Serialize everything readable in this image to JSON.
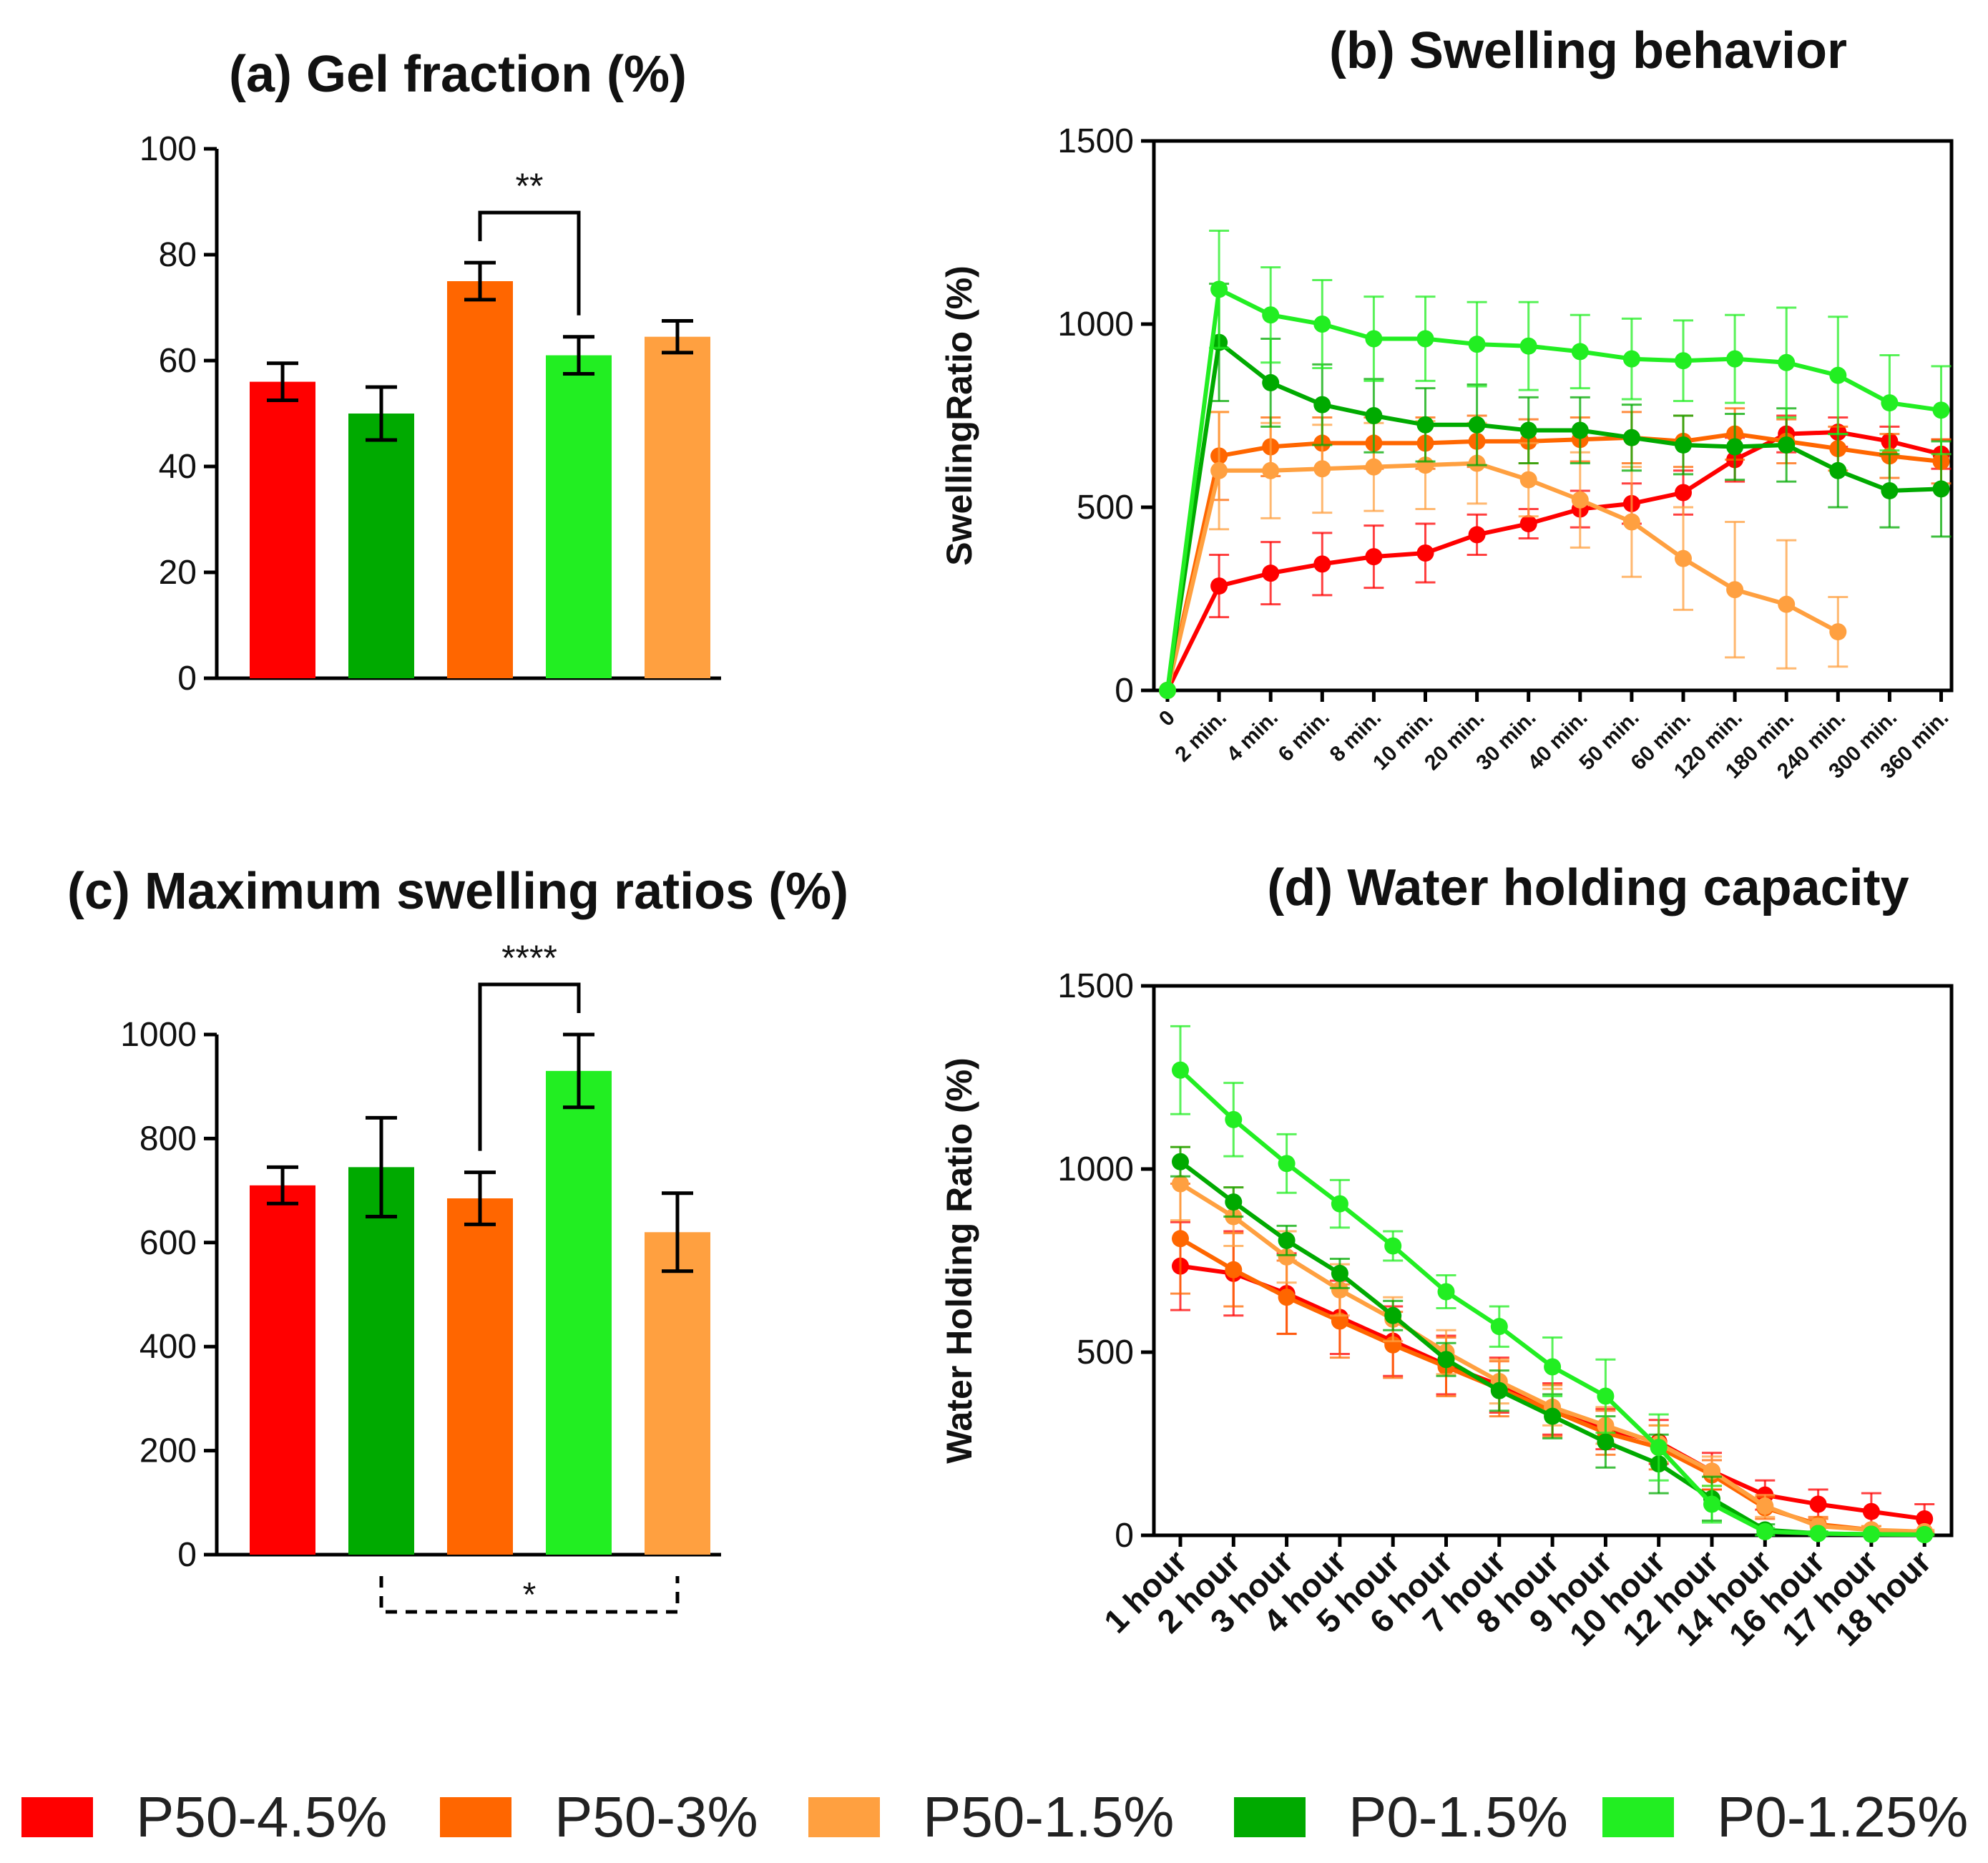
{
  "legend": [
    {
      "label": "P50-4.5%",
      "color": "#ff0000"
    },
    {
      "label": "P50-3%",
      "color": "#ff6600"
    },
    {
      "label": "P50-1.5%",
      "color": "#ffa040"
    },
    {
      "label": "P0-1.5%",
      "color": "#00aa00"
    },
    {
      "label": "P0-1.25%",
      "color": "#22ee22"
    }
  ],
  "chart_data": [
    {
      "id": "a",
      "type": "bar",
      "title": "(a)   Gel fraction (%)",
      "xlabel": "",
      "ylabel": "",
      "ylim": [
        0,
        100
      ],
      "yticks": [
        0,
        20,
        40,
        60,
        80,
        100
      ],
      "categories": [
        "P50-4.5%",
        "P0-1.5%",
        "P50-3%",
        "P0-1.25%",
        "P50-1.5%"
      ],
      "colors": [
        "#ff0000",
        "#00aa00",
        "#ff6600",
        "#22ee22",
        "#ffa040"
      ],
      "values": [
        56,
        50,
        75,
        61,
        64.5
      ],
      "errors": [
        3.5,
        5,
        3.5,
        3.5,
        3
      ],
      "annotations": [
        {
          "from": 2,
          "to": 3,
          "text": "**",
          "style": "solid"
        }
      ]
    },
    {
      "id": "b",
      "type": "line",
      "title": "(b)    Swelling behavior",
      "xlabel": "",
      "ylabel": "SwellingRatio (%)",
      "ylim": [
        0,
        1500
      ],
      "yticks": [
        0,
        500,
        1000,
        1500
      ],
      "x": [
        "0",
        "2 min.",
        "4 min.",
        "6 min.",
        "8 min.",
        "10 min.",
        "20 min.",
        "30 min.",
        "40 min.",
        "50 min.",
        "60 min.",
        "120 min.",
        "180 min.",
        "240 min.",
        "300 min.",
        "360 min."
      ],
      "series": [
        {
          "name": "P50-4.5%",
          "color": "#ff0000",
          "values": [
            0,
            285,
            320,
            345,
            365,
            375,
            425,
            455,
            495,
            510,
            540,
            630,
            700,
            705,
            680,
            645
          ],
          "errors": [
            0,
            85,
            85,
            85,
            85,
            80,
            55,
            40,
            50,
            55,
            60,
            60,
            50,
            40,
            40,
            40
          ]
        },
        {
          "name": "P50-3%",
          "color": "#ff6600",
          "values": [
            0,
            640,
            665,
            675,
            675,
            675,
            680,
            680,
            685,
            690,
            680,
            700,
            680,
            660,
            640,
            625
          ],
          "errors": [
            0,
            120,
            80,
            70,
            70,
            70,
            70,
            60,
            60,
            70,
            70,
            70,
            60,
            60,
            60,
            60
          ]
        },
        {
          "name": "P50-1.5%",
          "color": "#ffa040",
          "values": [
            0,
            600,
            600,
            605,
            610,
            615,
            620,
            575,
            520,
            460,
            360,
            275,
            235,
            160,
            null,
            null
          ],
          "errors": [
            0,
            160,
            130,
            120,
            120,
            120,
            110,
            100,
            130,
            150,
            140,
            185,
            175,
            95,
            0,
            0
          ]
        },
        {
          "name": "P0-1.5%",
          "color": "#00aa00",
          "values": [
            0,
            950,
            840,
            780,
            750,
            725,
            725,
            710,
            710,
            690,
            670,
            665,
            670,
            600,
            545,
            550
          ],
          "errors": [
            0,
            160,
            120,
            110,
            100,
            100,
            110,
            90,
            90,
            90,
            80,
            90,
            100,
            100,
            100,
            130
          ]
        },
        {
          "name": "P0-1.25%",
          "color": "#22ee22",
          "values": [
            0,
            1095,
            1025,
            1000,
            960,
            960,
            945,
            940,
            925,
            905,
            900,
            905,
            895,
            860,
            785,
            765
          ],
          "errors": [
            0,
            160,
            130,
            120,
            115,
            115,
            115,
            120,
            100,
            110,
            110,
            120,
            150,
            160,
            130,
            120
          ]
        }
      ]
    },
    {
      "id": "c",
      "type": "bar",
      "title": "(c)  Maximum swelling ratios (%)",
      "xlabel": "",
      "ylabel": "",
      "ylim": [
        0,
        1000
      ],
      "yticks": [
        0,
        200,
        400,
        600,
        800,
        1000
      ],
      "categories": [
        "P50-4.5%",
        "P0-1.5%",
        "P50-3%",
        "P0-1.25%",
        "P50-1.5%"
      ],
      "colors": [
        "#ff0000",
        "#00aa00",
        "#ff6600",
        "#22ee22",
        "#ffa040"
      ],
      "values": [
        710,
        745,
        685,
        930,
        620
      ],
      "errors": [
        35,
        95,
        50,
        70,
        75
      ],
      "annotations": [
        {
          "from": 2,
          "to": 3,
          "text": "****",
          "style": "solid"
        },
        {
          "from": 1,
          "to": 4,
          "text": "*",
          "style": "dashed"
        }
      ]
    },
    {
      "id": "d",
      "type": "line",
      "title": "(d)   Water holding capacity",
      "xlabel": "",
      "ylabel": "Water Holding Ratio  (%)",
      "ylim": [
        0,
        1500
      ],
      "yticks": [
        0,
        500,
        1000,
        1500
      ],
      "x": [
        "1 hour",
        "2 hour",
        "3 hour",
        "4 hour",
        "5 hour",
        "6 hour",
        "7 hour",
        "8 hour",
        "9 hour",
        "10 hour",
        "12 hour",
        "14 hour",
        "16 hour",
        "17 hour",
        "18 hour"
      ],
      "series": [
        {
          "name": "P50-4.5%",
          "color": "#ff0000",
          "values": [
            735,
            715,
            660,
            595,
            530,
            465,
            410,
            345,
            290,
            255,
            175,
            110,
            85,
            65,
            45
          ],
          "errors": [
            120,
            115,
            110,
            100,
            95,
            80,
            75,
            70,
            55,
            60,
            50,
            40,
            40,
            50,
            40
          ]
        },
        {
          "name": "P50-3%",
          "color": "#ff6600",
          "values": [
            810,
            725,
            650,
            585,
            520,
            460,
            400,
            340,
            280,
            240,
            165,
            75,
            30,
            15,
            5
          ],
          "errors": [
            150,
            100,
            100,
            100,
            90,
            80,
            75,
            70,
            60,
            60,
            40,
            30,
            20,
            10,
            5
          ]
        },
        {
          "name": "P50-1.5%",
          "color": "#ffa040",
          "values": [
            960,
            870,
            760,
            670,
            590,
            500,
            420,
            350,
            300,
            250,
            175,
            80,
            25,
            15,
            10
          ],
          "errors": [
            100,
            80,
            70,
            70,
            60,
            60,
            60,
            50,
            50,
            50,
            40,
            30,
            20,
            10,
            5
          ]
        },
        {
          "name": "P0-1.5%",
          "color": "#00aa00",
          "values": [
            1020,
            910,
            805,
            715,
            600,
            480,
            395,
            325,
            255,
            195,
            100,
            15,
            5,
            3,
            2
          ],
          "errors": [
            40,
            40,
            40,
            40,
            40,
            45,
            55,
            60,
            70,
            80,
            60,
            15,
            5,
            3,
            2
          ]
        },
        {
          "name": "P0-1.25%",
          "color": "#22ee22",
          "values": [
            1270,
            1135,
            1015,
            905,
            790,
            665,
            570,
            460,
            380,
            240,
            85,
            10,
            5,
            3,
            2
          ],
          "errors": [
            120,
            100,
            80,
            65,
            40,
            45,
            55,
            80,
            100,
            90,
            50,
            10,
            5,
            3,
            2
          ]
        }
      ]
    }
  ]
}
